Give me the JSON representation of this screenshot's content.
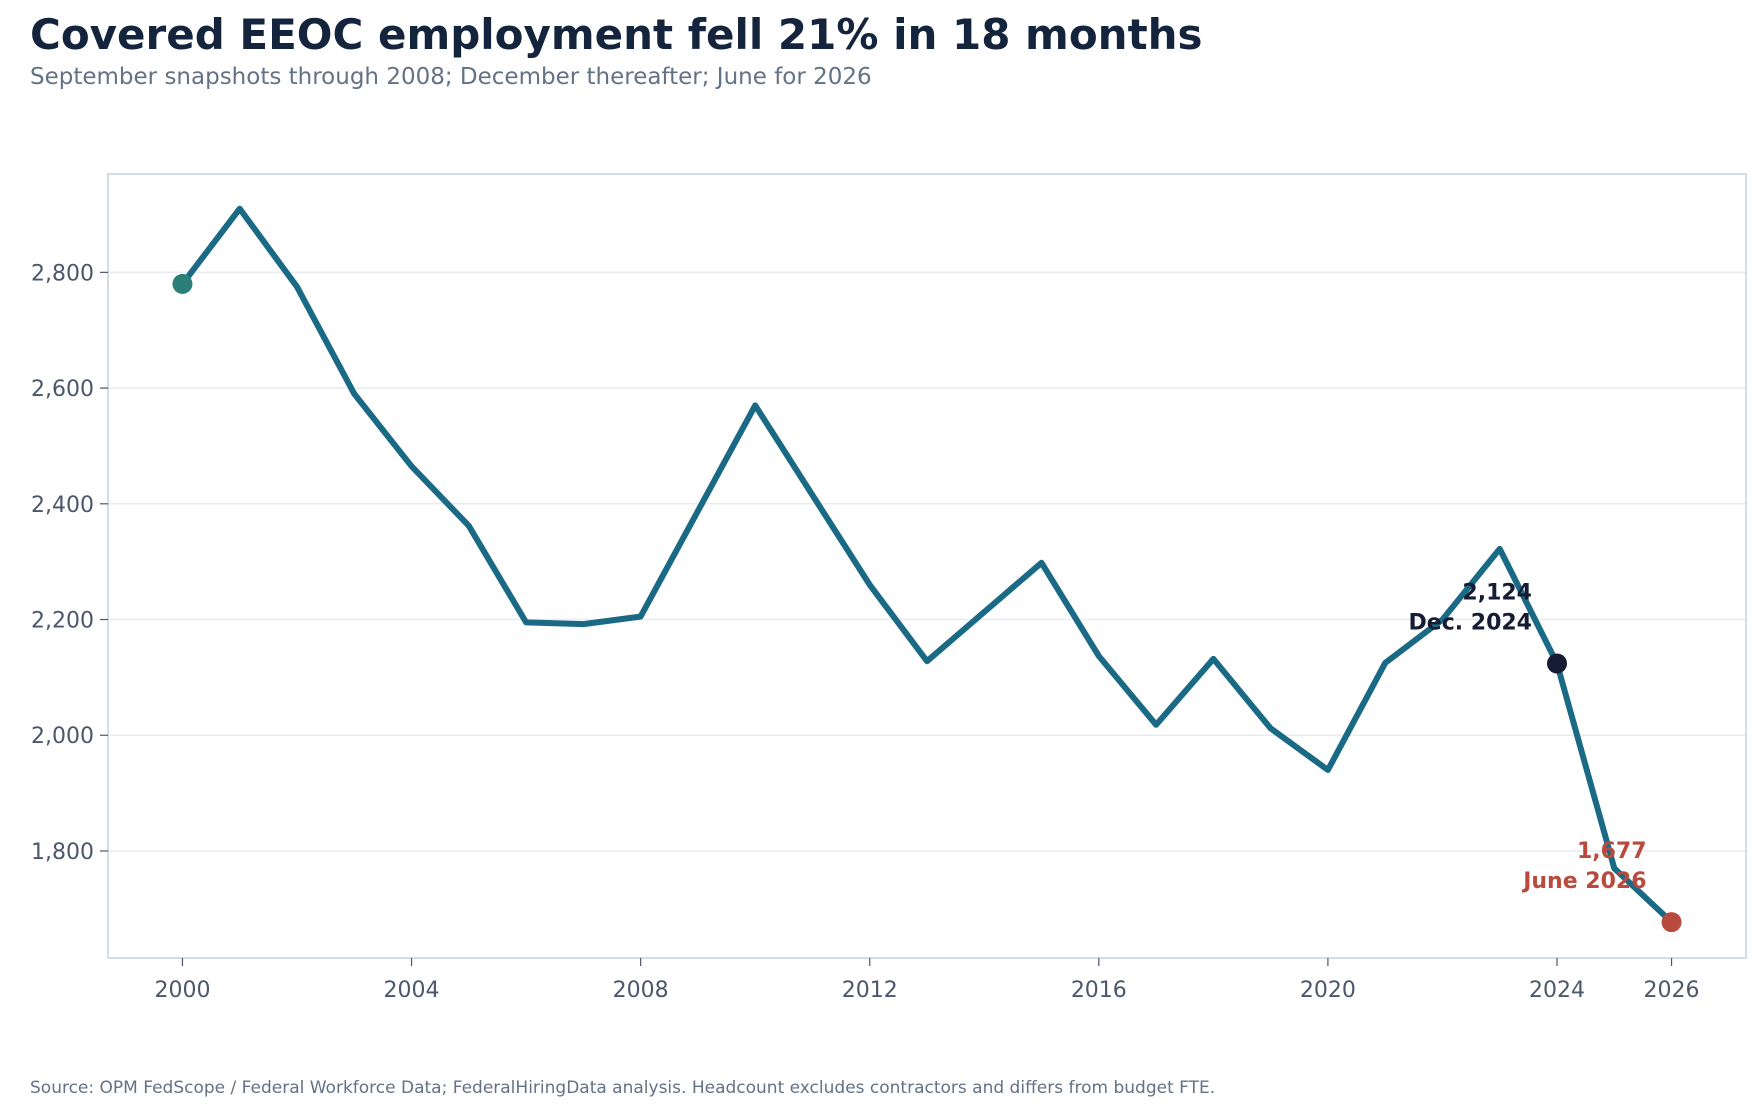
{
  "header": {
    "title": "Covered EEOC employment fell 21% in 18 months",
    "subtitle": "September snapshots through 2008; December thereafter; June for 2026"
  },
  "footer": {
    "source": "Source: OPM FedScope / Federal Workforce Data; FederalHiringData analysis. Headcount excludes contractors and differs from budget FTE."
  },
  "colors": {
    "line": "#1b6a85",
    "start_marker": "#2a7f78",
    "dec2024_marker": "#151c33",
    "june2026_marker": "#b94a3e",
    "grid": "#e8ecf0",
    "frame": "#c9d1da"
  },
  "chart_data": {
    "type": "line",
    "title": "Covered EEOC employment fell 21% in 18 months",
    "subtitle": "September snapshots through 2008; December thereafter; June for 2026",
    "xlabel": "",
    "ylabel": "",
    "x": [
      2000,
      2001,
      2002,
      2003,
      2004,
      2005,
      2006,
      2007,
      2008,
      2010,
      2012,
      2013,
      2015,
      2016,
      2017,
      2018,
      2019,
      2020,
      2021,
      2022,
      2023,
      2024,
      2025,
      2026
    ],
    "values": [
      2780,
      2910,
      2775,
      2590,
      2465,
      2362,
      2195,
      2192,
      2205,
      2570,
      2260,
      2128,
      2298,
      2137,
      2018,
      2132,
      2012,
      1940,
      2125,
      2200,
      2322,
      2124,
      1770,
      1677
    ],
    "xlim": [
      1998.7,
      2027.3
    ],
    "ylim": [
      1615,
      2970
    ],
    "x_ticks": [
      "2000",
      "2004",
      "2008",
      "2012",
      "2016",
      "2020",
      "2024",
      "2026"
    ],
    "y_ticks": [
      "1,800",
      "2,000",
      "2,200",
      "2,400",
      "2,600",
      "2,800"
    ],
    "grid": "horizontal",
    "annotations": [
      {
        "x": 2024,
        "y": 2124,
        "value_label": "2,124",
        "date_label": "Dec. 2024",
        "color": "#151c33"
      },
      {
        "x": 2026,
        "y": 1677,
        "value_label": "1,677",
        "date_label": "June 2026",
        "color": "#b94a3e"
      }
    ]
  }
}
